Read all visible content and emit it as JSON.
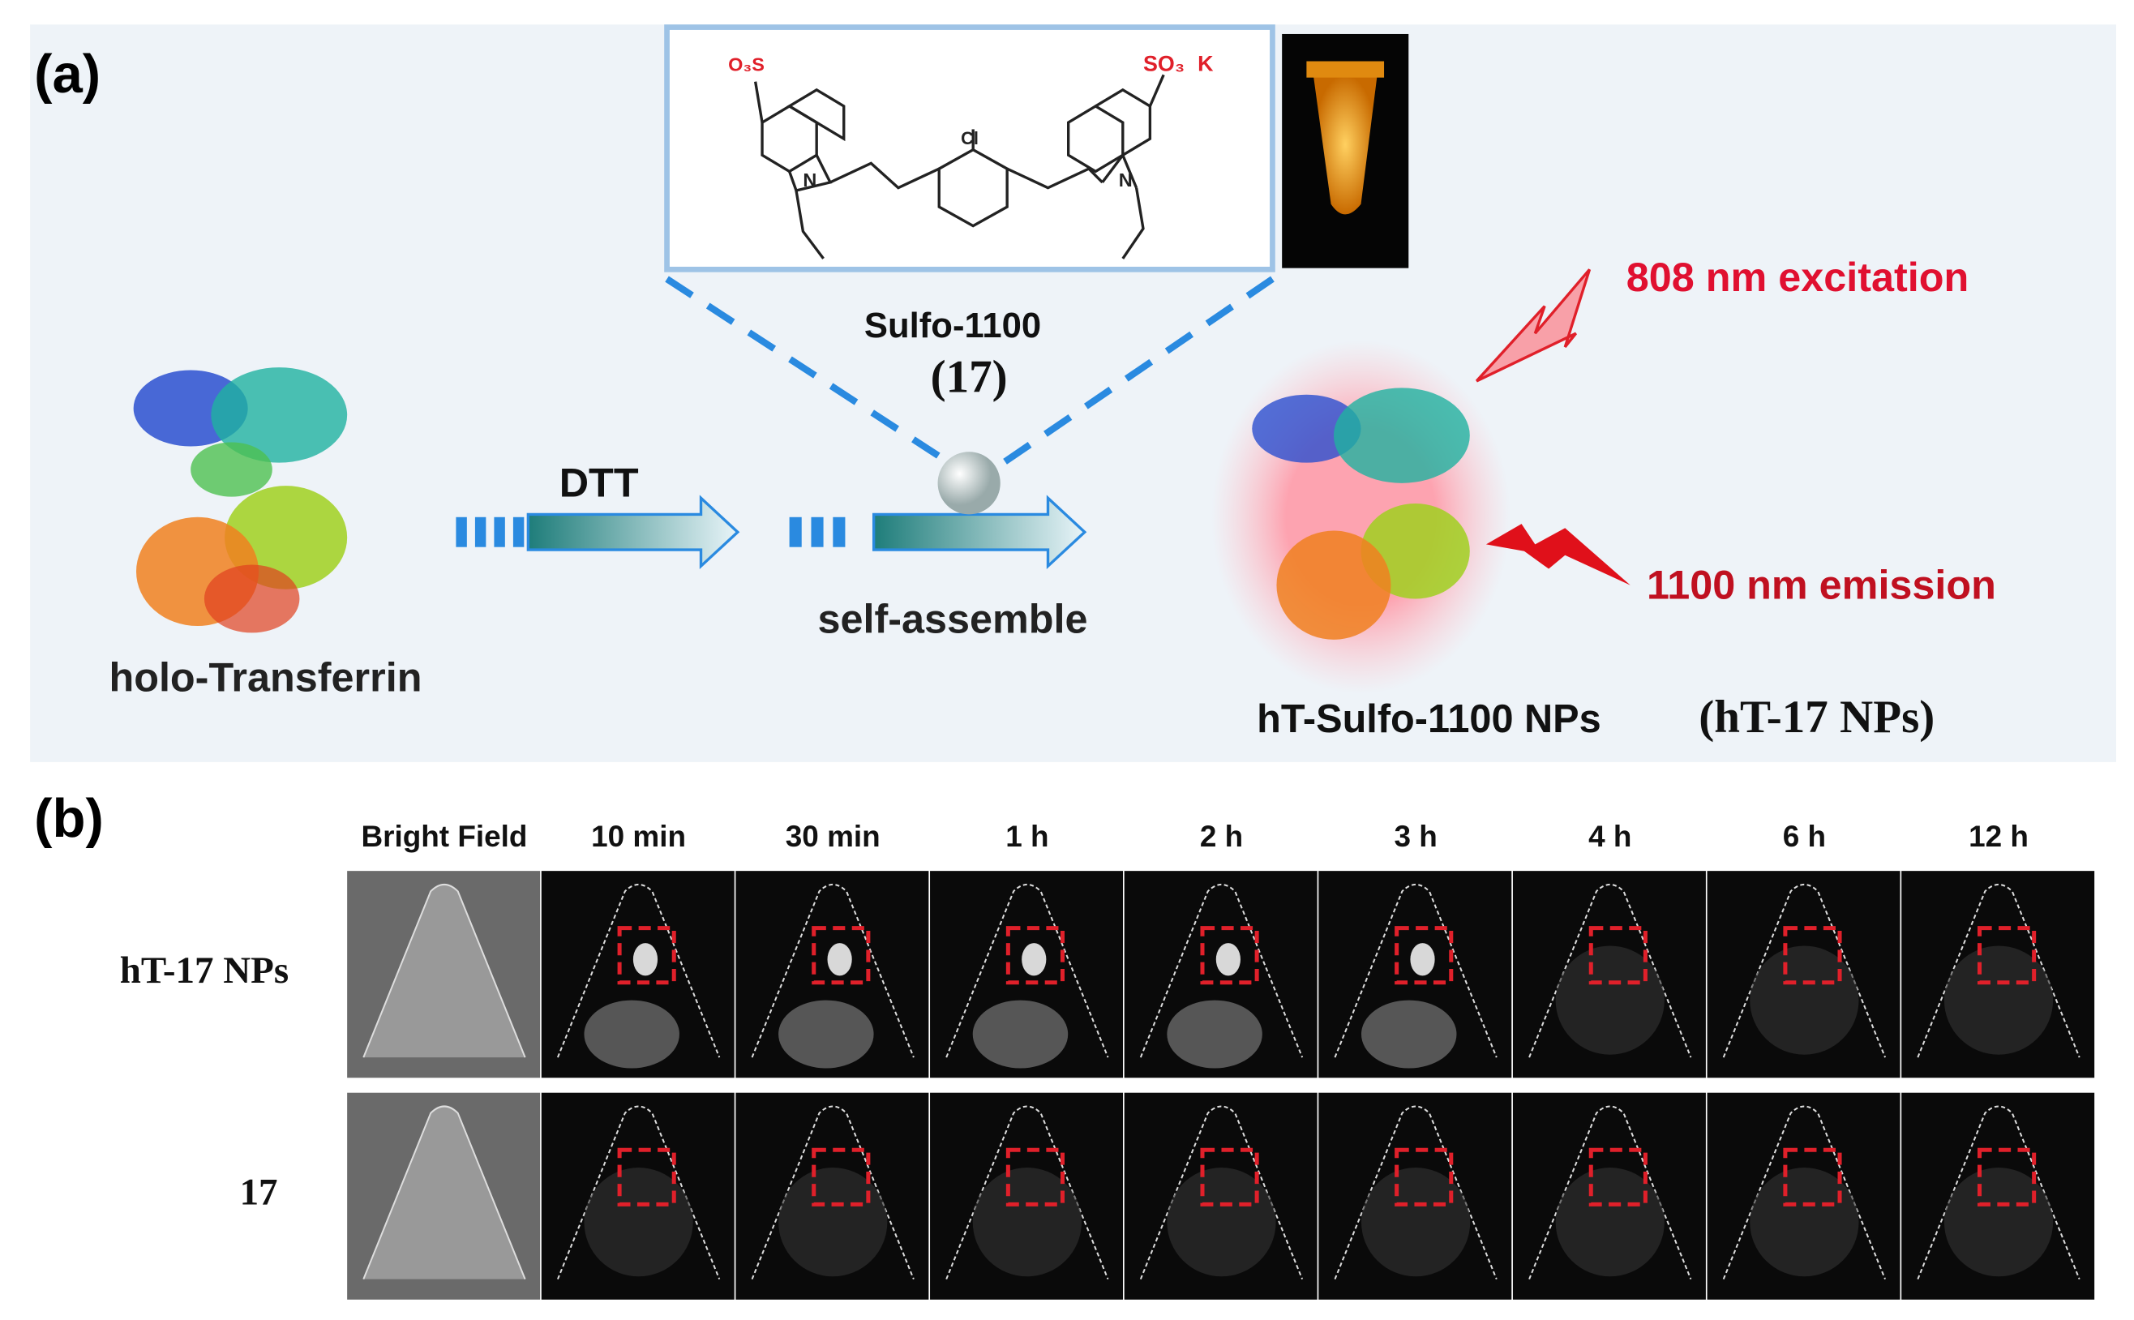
{
  "panel_a": {
    "label": "(a)",
    "dye_name": "Sulfo-1100",
    "dye_number": "(17)",
    "structure_labels": {
      "left_sulfonate": "O₃S",
      "right_sulfonate": "SO₃",
      "counterion": "K",
      "chlorine": "Cl",
      "left_nitrogen": "N",
      "right_nitrogen": "N"
    },
    "step1": "DTT",
    "step2": "self-assemble",
    "protein": "holo-Transferrin",
    "excitation": "808 nm excitation",
    "emission": "1100 nm emission",
    "product": "hT-Sulfo-1100 NPs",
    "product_short": "(hT-17 NPs)"
  },
  "panel_b": {
    "label": "(b)",
    "columns": [
      "Bright Field",
      "10 min",
      "30 min",
      "1 h",
      "2 h",
      "3 h",
      "4 h",
      "6 h",
      "12 h"
    ],
    "rows": [
      "hT-17 NPs",
      "17"
    ]
  }
}
